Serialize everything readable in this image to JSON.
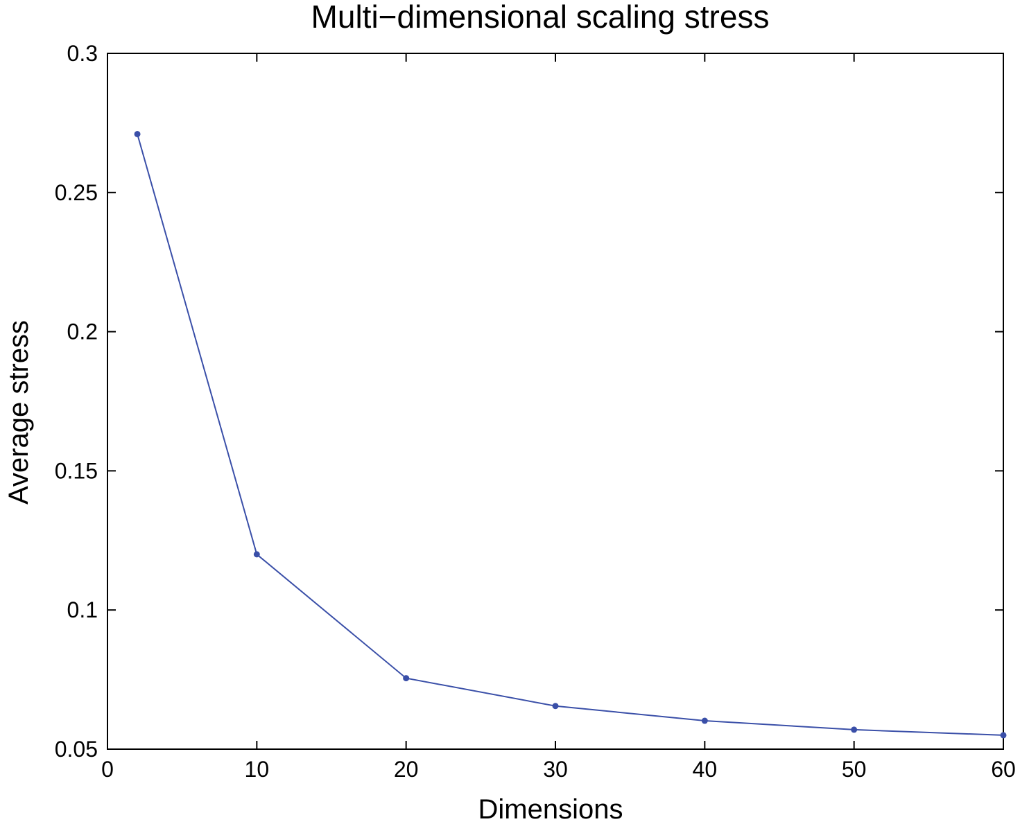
{
  "chart_data": {
    "type": "line",
    "title": "Multi−dimensional scaling stress",
    "xlabel": "Dimensions",
    "ylabel": "Average stress",
    "xlim": [
      0,
      60
    ],
    "ylim": [
      0.05,
      0.3
    ],
    "xticks": [
      0,
      10,
      20,
      30,
      40,
      50,
      60
    ],
    "xtick_labels": [
      "0",
      "10",
      "20",
      "30",
      "40",
      "50",
      "60"
    ],
    "yticks": [
      0.05,
      0.1,
      0.15,
      0.2,
      0.25,
      0.3
    ],
    "ytick_labels": [
      "0.05",
      "0.1",
      "0.15",
      "0.2",
      "0.25",
      "0.3"
    ],
    "grid": false,
    "series": [
      {
        "color": "#3a4fa8",
        "x": [
          2,
          10,
          20,
          30,
          40,
          50,
          60
        ],
        "y": [
          0.271,
          0.12,
          0.0755,
          0.0655,
          0.0602,
          0.057,
          0.055
        ]
      }
    ]
  }
}
